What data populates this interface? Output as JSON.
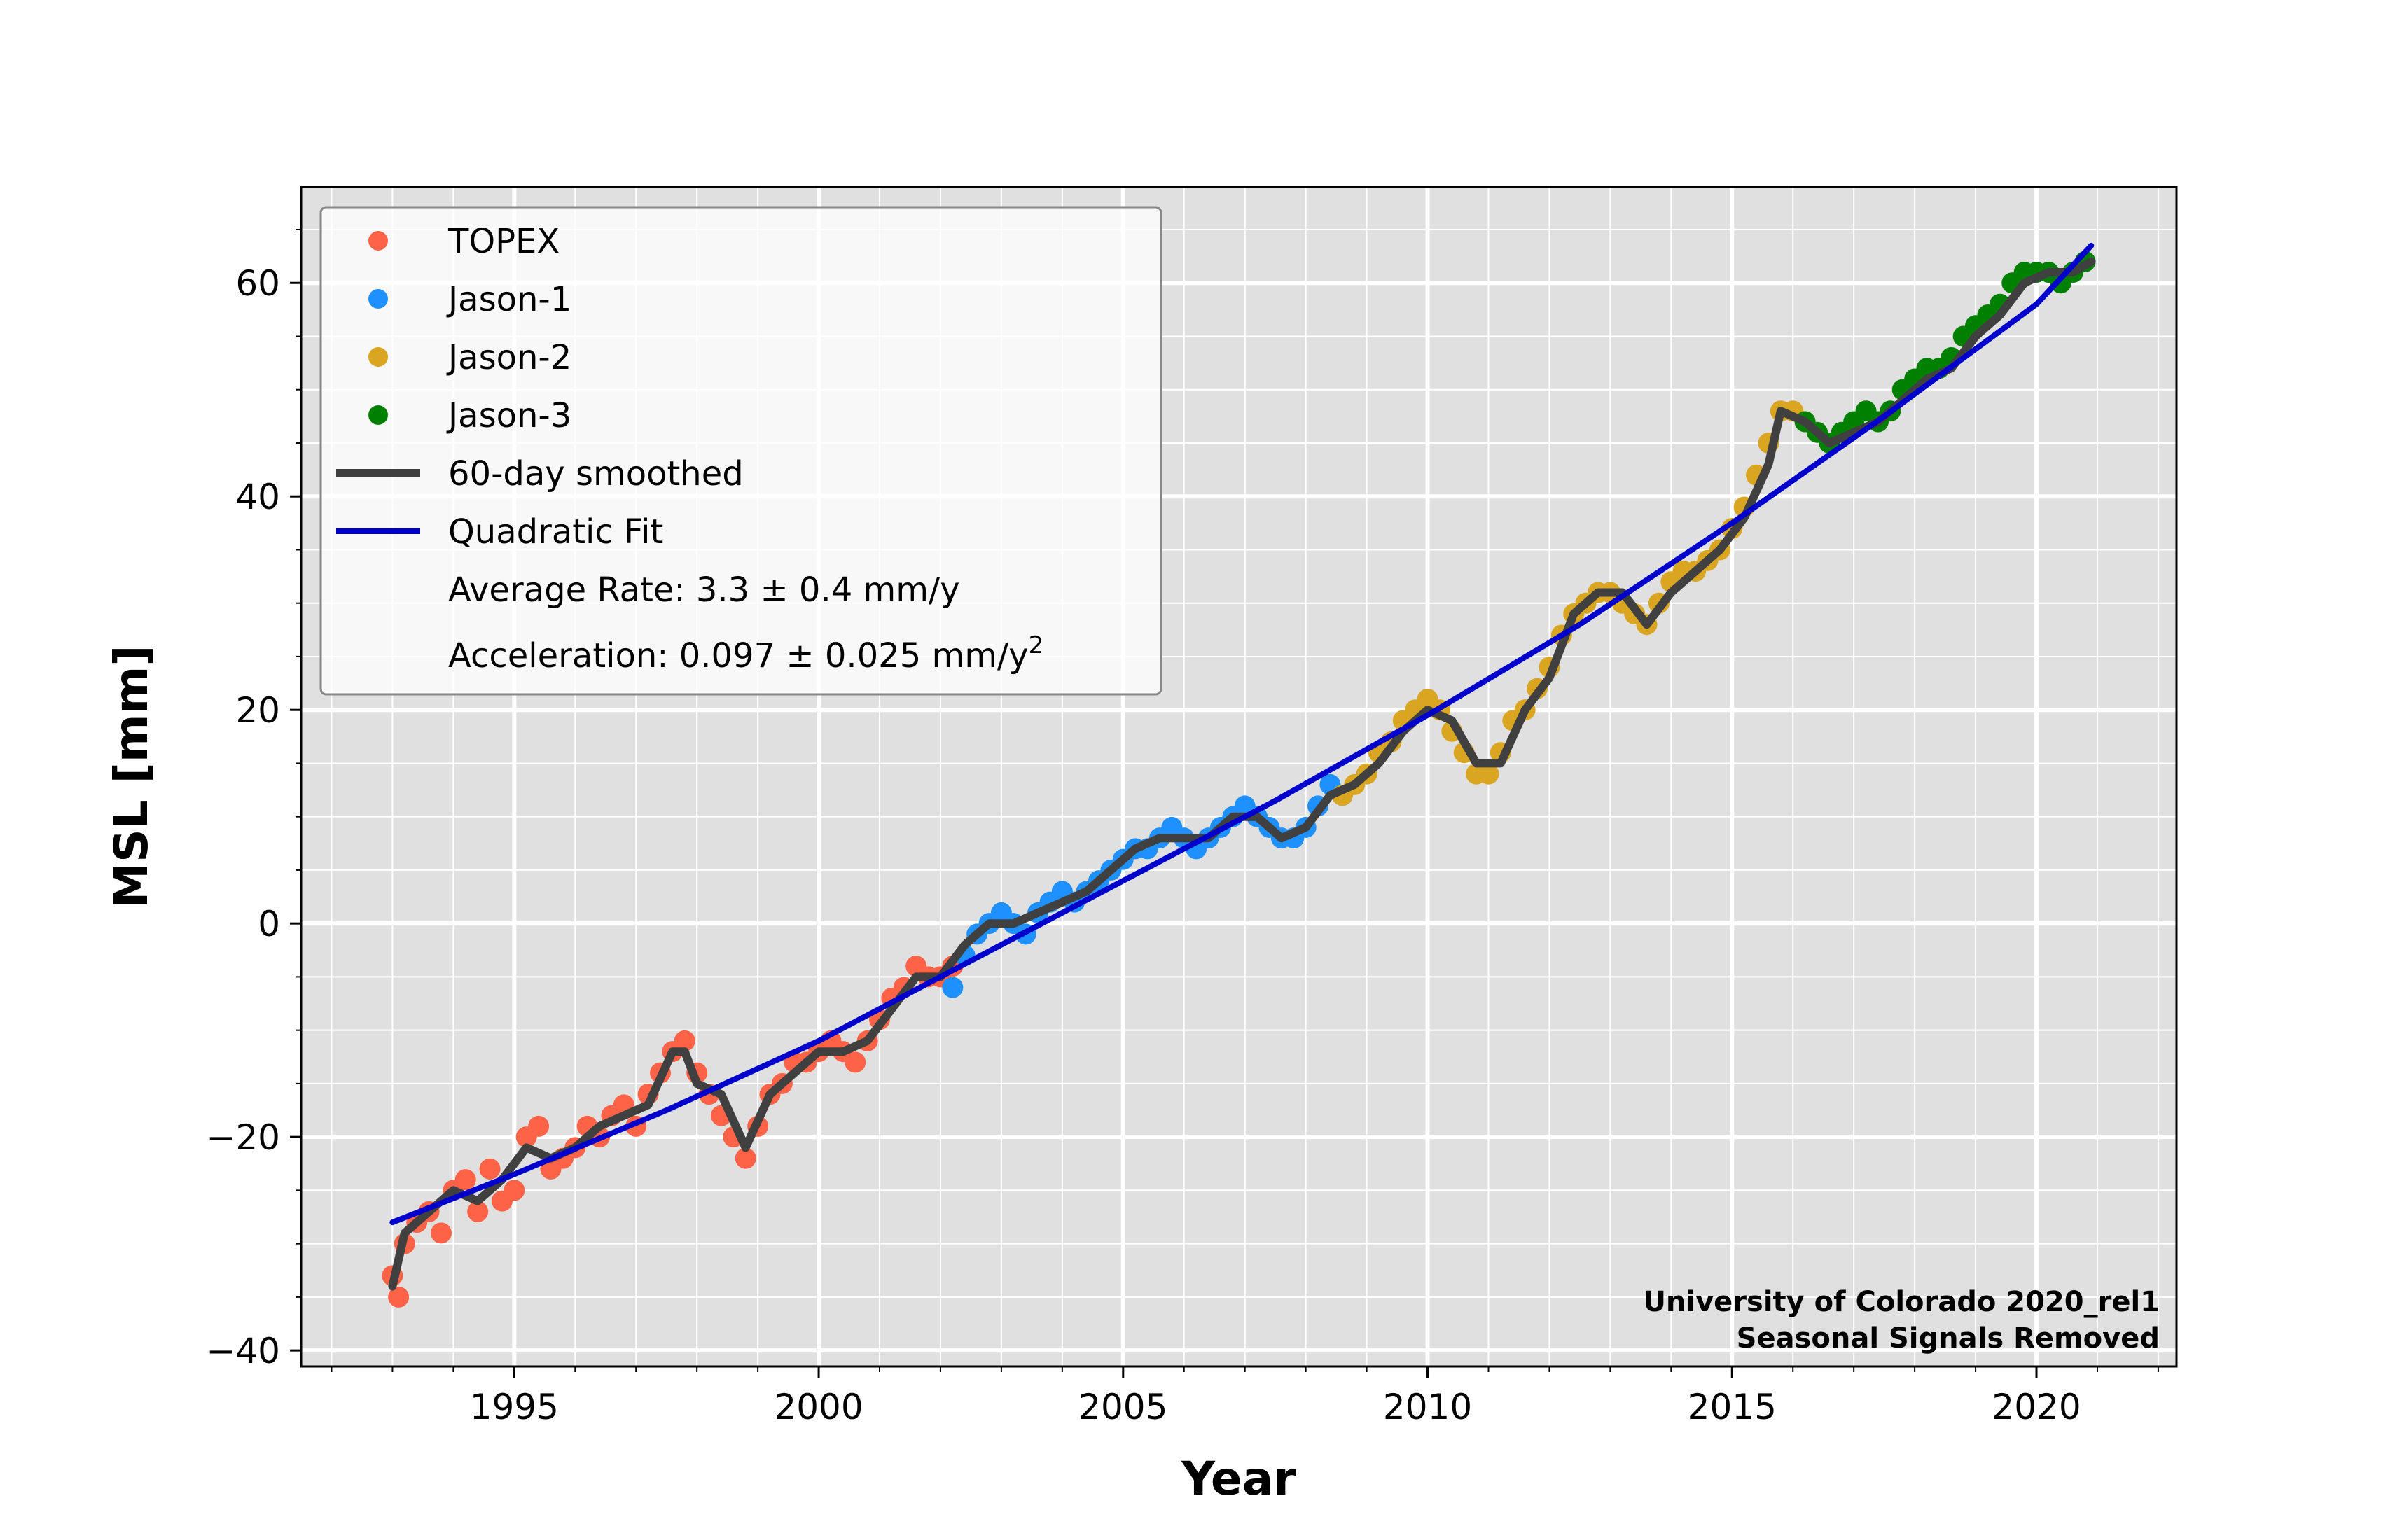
{
  "colors": {
    "background": "#ffffff",
    "plot_bg": "#e0e0e0",
    "grid": "#ffffff",
    "TOPEX": "#ff6347",
    "Jason-1": "#1e90ff",
    "Jason-2": "#daa520",
    "Jason-3": "#008000",
    "smoothed": "#404040",
    "fit": "#0000cd"
  },
  "chart_data": {
    "type": "scatter",
    "title": "",
    "xlabel": "Year",
    "ylabel": "MSL [mm]",
    "xlim": [
      1991.5,
      2022.3
    ],
    "ylim": [
      -41.5,
      69
    ],
    "grid": true,
    "minor_grid": true,
    "legend_position": "upper-left",
    "x_tick_values": [
      1995,
      2000,
      2005,
      2010,
      2015,
      2020
    ],
    "x_tick_labels": [
      "1995",
      "2000",
      "2005",
      "2010",
      "2015",
      "2020"
    ],
    "y_tick_values": [
      -40,
      -20,
      0,
      20,
      40,
      60
    ],
    "y_tick_labels": [
      "−40",
      "−20",
      "0",
      "20",
      "40",
      "60"
    ],
    "annotation_lines": [
      "University of Colorado 2020_rel1",
      "Seasonal Signals Removed"
    ],
    "legend": {
      "entries": [
        {
          "label": "TOPEX",
          "kind": "marker",
          "color_key": "TOPEX"
        },
        {
          "label": "Jason-1",
          "kind": "marker",
          "color_key": "Jason-1"
        },
        {
          "label": "Jason-2",
          "kind": "marker",
          "color_key": "Jason-2"
        },
        {
          "label": "Jason-3",
          "kind": "marker",
          "color_key": "Jason-3"
        },
        {
          "label": "60-day smoothed",
          "kind": "line",
          "color_key": "smoothed"
        },
        {
          "label": "Quadratic Fit",
          "kind": "line",
          "color_key": "fit"
        }
      ],
      "rate_text": "Average Rate: 3.3 ± 0.4 mm/y",
      "accel_text": "Acceleration: 0.097 ± 0.025 mm/y",
      "accel_superscript": "2"
    },
    "series": [
      {
        "name": "TOPEX",
        "kind": "scatter",
        "points": [
          [
            1993.0,
            -33
          ],
          [
            1993.1,
            -35
          ],
          [
            1993.2,
            -30
          ],
          [
            1993.4,
            -28
          ],
          [
            1993.6,
            -27
          ],
          [
            1993.8,
            -29
          ],
          [
            1994.0,
            -25
          ],
          [
            1994.2,
            -24
          ],
          [
            1994.4,
            -27
          ],
          [
            1994.6,
            -23
          ],
          [
            1994.8,
            -26
          ],
          [
            1995.0,
            -25
          ],
          [
            1995.2,
            -20
          ],
          [
            1995.4,
            -19
          ],
          [
            1995.6,
            -23
          ],
          [
            1995.8,
            -22
          ],
          [
            1996.0,
            -21
          ],
          [
            1996.2,
            -19
          ],
          [
            1996.4,
            -20
          ],
          [
            1996.6,
            -18
          ],
          [
            1996.8,
            -17
          ],
          [
            1997.0,
            -19
          ],
          [
            1997.2,
            -16
          ],
          [
            1997.4,
            -14
          ],
          [
            1997.6,
            -12
          ],
          [
            1997.8,
            -11
          ],
          [
            1998.0,
            -14
          ],
          [
            1998.2,
            -16
          ],
          [
            1998.4,
            -18
          ],
          [
            1998.6,
            -20
          ],
          [
            1998.8,
            -22
          ],
          [
            1999.0,
            -19
          ],
          [
            1999.2,
            -16
          ],
          [
            1999.4,
            -15
          ],
          [
            1999.6,
            -13
          ],
          [
            1999.8,
            -13
          ],
          [
            2000.0,
            -12
          ],
          [
            2000.2,
            -11
          ],
          [
            2000.4,
            -12
          ],
          [
            2000.6,
            -13
          ],
          [
            2000.8,
            -11
          ],
          [
            2001.0,
            -9
          ],
          [
            2001.2,
            -7
          ],
          [
            2001.4,
            -6
          ],
          [
            2001.6,
            -4
          ],
          [
            2001.8,
            -5
          ],
          [
            2002.0,
            -5
          ],
          [
            2002.2,
            -4
          ]
        ]
      },
      {
        "name": "Jason-1",
        "kind": "scatter",
        "points": [
          [
            2002.2,
            -6
          ],
          [
            2002.4,
            -3
          ],
          [
            2002.6,
            -1
          ],
          [
            2002.8,
            0
          ],
          [
            2003.0,
            1
          ],
          [
            2003.2,
            0
          ],
          [
            2003.4,
            -1
          ],
          [
            2003.6,
            1
          ],
          [
            2003.8,
            2
          ],
          [
            2004.0,
            3
          ],
          [
            2004.2,
            2
          ],
          [
            2004.4,
            3
          ],
          [
            2004.6,
            4
          ],
          [
            2004.8,
            5
          ],
          [
            2005.0,
            6
          ],
          [
            2005.2,
            7
          ],
          [
            2005.4,
            7
          ],
          [
            2005.6,
            8
          ],
          [
            2005.8,
            9
          ],
          [
            2006.0,
            8
          ],
          [
            2006.2,
            7
          ],
          [
            2006.4,
            8
          ],
          [
            2006.6,
            9
          ],
          [
            2006.8,
            10
          ],
          [
            2007.0,
            11
          ],
          [
            2007.2,
            10
          ],
          [
            2007.4,
            9
          ],
          [
            2007.6,
            8
          ],
          [
            2007.8,
            8
          ],
          [
            2008.0,
            9
          ],
          [
            2008.2,
            11
          ],
          [
            2008.4,
            13
          ],
          [
            2008.6,
            12
          ]
        ]
      },
      {
        "name": "Jason-2",
        "kind": "scatter",
        "points": [
          [
            2008.6,
            12
          ],
          [
            2008.8,
            13
          ],
          [
            2009.0,
            14
          ],
          [
            2009.2,
            16
          ],
          [
            2009.4,
            17
          ],
          [
            2009.6,
            19
          ],
          [
            2009.8,
            20
          ],
          [
            2010.0,
            21
          ],
          [
            2010.2,
            20
          ],
          [
            2010.4,
            18
          ],
          [
            2010.6,
            16
          ],
          [
            2010.8,
            14
          ],
          [
            2011.0,
            14
          ],
          [
            2011.2,
            16
          ],
          [
            2011.4,
            19
          ],
          [
            2011.6,
            20
          ],
          [
            2011.8,
            22
          ],
          [
            2012.0,
            24
          ],
          [
            2012.2,
            27
          ],
          [
            2012.4,
            29
          ],
          [
            2012.6,
            30
          ],
          [
            2012.8,
            31
          ],
          [
            2013.0,
            31
          ],
          [
            2013.2,
            30
          ],
          [
            2013.4,
            29
          ],
          [
            2013.6,
            28
          ],
          [
            2013.8,
            30
          ],
          [
            2014.0,
            32
          ],
          [
            2014.2,
            33
          ],
          [
            2014.4,
            33
          ],
          [
            2014.6,
            34
          ],
          [
            2014.8,
            35
          ],
          [
            2015.0,
            37
          ],
          [
            2015.2,
            39
          ],
          [
            2015.4,
            42
          ],
          [
            2015.6,
            45
          ],
          [
            2015.8,
            48
          ],
          [
            2016.0,
            48
          ],
          [
            2016.2,
            47
          ]
        ]
      },
      {
        "name": "Jason-3",
        "kind": "scatter",
        "points": [
          [
            2016.2,
            47
          ],
          [
            2016.4,
            46
          ],
          [
            2016.6,
            45
          ],
          [
            2016.8,
            46
          ],
          [
            2017.0,
            47
          ],
          [
            2017.2,
            48
          ],
          [
            2017.4,
            47
          ],
          [
            2017.6,
            48
          ],
          [
            2017.8,
            50
          ],
          [
            2018.0,
            51
          ],
          [
            2018.2,
            52
          ],
          [
            2018.4,
            52
          ],
          [
            2018.6,
            53
          ],
          [
            2018.8,
            55
          ],
          [
            2019.0,
            56
          ],
          [
            2019.2,
            57
          ],
          [
            2019.4,
            58
          ],
          [
            2019.6,
            60
          ],
          [
            2019.8,
            61
          ],
          [
            2020.0,
            61
          ],
          [
            2020.2,
            61
          ],
          [
            2020.4,
            60
          ],
          [
            2020.6,
            61
          ],
          [
            2020.8,
            62
          ]
        ]
      },
      {
        "name": "60-day smoothed",
        "kind": "line",
        "points": [
          [
            1993.0,
            -34
          ],
          [
            1993.2,
            -29
          ],
          [
            1993.6,
            -27
          ],
          [
            1994.0,
            -25
          ],
          [
            1994.4,
            -26
          ],
          [
            1994.8,
            -24
          ],
          [
            1995.2,
            -21
          ],
          [
            1995.6,
            -22
          ],
          [
            1996.0,
            -21
          ],
          [
            1996.4,
            -19
          ],
          [
            1996.8,
            -18
          ],
          [
            1997.2,
            -17
          ],
          [
            1997.6,
            -12
          ],
          [
            1997.8,
            -12
          ],
          [
            1998.0,
            -15
          ],
          [
            1998.4,
            -16
          ],
          [
            1998.8,
            -21
          ],
          [
            1999.2,
            -16
          ],
          [
            1999.6,
            -14
          ],
          [
            2000.0,
            -12
          ],
          [
            2000.4,
            -12
          ],
          [
            2000.8,
            -11
          ],
          [
            2001.2,
            -8
          ],
          [
            2001.6,
            -5
          ],
          [
            2002.0,
            -5
          ],
          [
            2002.4,
            -2
          ],
          [
            2002.8,
            0
          ],
          [
            2003.2,
            0
          ],
          [
            2003.6,
            1
          ],
          [
            2004.0,
            2
          ],
          [
            2004.4,
            3
          ],
          [
            2004.8,
            5
          ],
          [
            2005.2,
            7
          ],
          [
            2005.6,
            8
          ],
          [
            2006.0,
            8
          ],
          [
            2006.4,
            8
          ],
          [
            2006.8,
            10
          ],
          [
            2007.2,
            10
          ],
          [
            2007.6,
            8
          ],
          [
            2008.0,
            9
          ],
          [
            2008.4,
            12
          ],
          [
            2008.8,
            13
          ],
          [
            2009.2,
            15
          ],
          [
            2009.6,
            18
          ],
          [
            2010.0,
            20
          ],
          [
            2010.4,
            19
          ],
          [
            2010.8,
            15
          ],
          [
            2011.2,
            15
          ],
          [
            2011.6,
            20
          ],
          [
            2012.0,
            23
          ],
          [
            2012.4,
            29
          ],
          [
            2012.8,
            31
          ],
          [
            2013.2,
            31
          ],
          [
            2013.6,
            28
          ],
          [
            2014.0,
            31
          ],
          [
            2014.4,
            33
          ],
          [
            2014.8,
            35
          ],
          [
            2015.2,
            38
          ],
          [
            2015.6,
            43
          ],
          [
            2015.8,
            48
          ],
          [
            2016.2,
            47
          ],
          [
            2016.6,
            45
          ],
          [
            2017.0,
            46
          ],
          [
            2017.4,
            47
          ],
          [
            2017.8,
            49
          ],
          [
            2018.2,
            51
          ],
          [
            2018.6,
            52
          ],
          [
            2019.0,
            55
          ],
          [
            2019.4,
            57
          ],
          [
            2019.8,
            60
          ],
          [
            2020.2,
            61
          ],
          [
            2020.6,
            61
          ],
          [
            2020.9,
            62
          ]
        ]
      },
      {
        "name": "Quadratic Fit",
        "kind": "line",
        "points": [
          [
            1993.0,
            -28
          ],
          [
            1995.0,
            -23.5
          ],
          [
            1997.5,
            -17.5
          ],
          [
            2000.0,
            -11
          ],
          [
            2002.5,
            -3.5
          ],
          [
            2005.0,
            4
          ],
          [
            2007.5,
            11.5
          ],
          [
            2010.0,
            19.5
          ],
          [
            2012.5,
            28
          ],
          [
            2015.0,
            37.5
          ],
          [
            2017.5,
            47.5
          ],
          [
            2020.0,
            58
          ],
          [
            2020.9,
            63.5
          ]
        ]
      }
    ]
  }
}
